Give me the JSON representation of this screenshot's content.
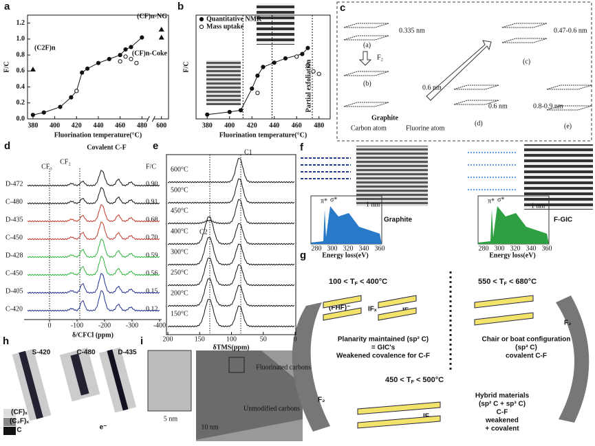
{
  "panel_labels": [
    "a",
    "b",
    "c",
    "d",
    "e",
    "f",
    "g",
    "h",
    "i"
  ],
  "chart_data": [
    {
      "type": "line",
      "ylabel": "F/C",
      "xlabel": "Fluorination temperature(°C)",
      "xlim": [
        375,
        605
      ],
      "x_break": [
        485,
        595
      ],
      "ylim": [
        0,
        1.3
      ],
      "xticks": [
        380,
        400,
        420,
        440,
        460,
        480,
        600
      ],
      "yticks": [
        {
          "value": 0,
          "label": "0.0"
        },
        0.2,
        0.4,
        0.6,
        {
          "value": 0.8,
          "label": "0.8"
        },
        {
          "value": 1,
          "label": "1.0"
        },
        1.2
      ],
      "series": [
        {
          "marker": "circle-filled",
          "line": true,
          "color": "#111",
          "x": [
            380,
            390,
            405,
            415,
            420,
            425,
            430,
            440,
            450,
            460,
            465,
            470,
            480
          ],
          "values": [
            0.05,
            0.08,
            0.15,
            0.27,
            0.35,
            0.58,
            0.63,
            0.7,
            0.75,
            0.8,
            0.87,
            0.9,
            1.02
          ]
        },
        {
          "marker": "circle-open",
          "line": false,
          "color": "#111",
          "x": [
            420,
            460,
            465,
            470,
            475
          ],
          "values": [
            0.35,
            0.72,
            0.78,
            0.75,
            0.7
          ]
        },
        {
          "marker": "triangle",
          "line": false,
          "color": "#111",
          "x": [
            380,
            600,
            600
          ],
          "values": [
            0.62,
            1.12,
            1.02
          ]
        }
      ],
      "annotations": [
        "(C2F)n",
        "(CF)n-NG",
        "(CF)n-Coke"
      ]
    },
    {
      "type": "line",
      "ylabel": "F/C",
      "xlabel": "Fluorination temperature(°C)",
      "xlim": [
        370,
        490
      ],
      "ylim": [
        0,
        1.2
      ],
      "xticks": [
        380,
        400,
        420,
        440,
        460,
        480
      ],
      "series": [
        {
          "name": "Quantitative NMR",
          "marker": "circle-filled",
          "line": true,
          "color": "#111",
          "x": [
            380,
            400,
            410,
            420,
            425,
            430,
            440,
            450,
            465,
            470
          ],
          "values": [
            0.05,
            0.08,
            0.1,
            0.35,
            0.5,
            0.6,
            0.65,
            0.7,
            0.75,
            0.82
          ]
        },
        {
          "name": "Mass uptake",
          "marker": "circle-open",
          "line": false,
          "color": "#111",
          "x": [
            425,
            460,
            470,
            475,
            480
          ],
          "values": [
            0.3,
            0.72,
            0.62,
            0.55,
            0.52
          ]
        }
      ],
      "reference_lines": [
        412,
        438,
        474
      ],
      "annotation": "Partial exfoliation",
      "legend": "upper-left"
    }
  ],
  "panel_c": {
    "labels": [
      "0.335 nm",
      "(a)",
      "F₂",
      "(b)",
      "0.6 nm",
      "Graphite",
      "Carbon atom",
      "Fluorine atom",
      "(c)",
      "0.47-0.6 nm",
      "(d)",
      "0.6 nm",
      "0.8-0.9 nm",
      "(e)"
    ]
  },
  "panel_d": {
    "title": "Covalent C-F",
    "cf3": "CF₃",
    "cf2": "CF₂",
    "fc_header": "F/C",
    "rows": [
      [
        "D-472",
        "0.90"
      ],
      [
        "C-480",
        "0.91"
      ],
      [
        "D-435",
        "0.68"
      ],
      [
        "C-450",
        "0.70"
      ],
      [
        "D-428",
        "0.59"
      ],
      [
        "C-450",
        "0.56"
      ],
      [
        "D-405",
        "0.15"
      ],
      [
        "C-420",
        "0.12"
      ]
    ],
    "xticks": [
      0,
      -100,
      -200,
      -300,
      -400
    ],
    "xlabel": "δ/CFCl (ppm)"
  },
  "panel_e": {
    "rows": [
      "600°C",
      "500°C",
      "450°C",
      "400°C",
      "300°C",
      "250°C",
      "200°C",
      "150°C"
    ],
    "c1": "C1",
    "c2": "C2",
    "xticks": [
      200,
      150,
      100,
      50,
      0
    ],
    "xlabel": "δTMS(ppm)"
  },
  "panel_f": {
    "pi": "π*",
    "sigma": "σ*",
    "scale": "1 nm",
    "graphite": "Graphite",
    "fgic": "F-GIC",
    "xlabel": "Energy loss(eV)",
    "xticks": [
      280,
      300,
      320,
      340,
      360
    ]
  },
  "panel_g": {
    "t1": "100 < T",
    "t1b": "F",
    "t1c": " < 400°C",
    "fhf": "(FHF)⁻",
    "ifx": "IFₓ",
    "l1": "Planarity maintained (sp² C)",
    "l2": "= GIC's",
    "l3": "Weakened covalence for C-F",
    "t2": "550 < T",
    "t2b": "F",
    "t2c": " < 680°C",
    "r1": "Chair or boat configuration",
    "r2": "(sp³ C)",
    "r3": "covalent  C-F",
    "t3": "450 < T",
    "t3b": "F",
    "t3c": " < 500°C",
    "h1": "Hybrid materials",
    "h2": "(sp² C + sp³ C)",
    "h3": "C-F",
    "h4": "weakened",
    "h5": "+ covalent",
    "f2": "F₂"
  },
  "panel_h": {
    "s1": "S-420",
    "s2": "C-480",
    "s3": "D-435",
    "k1": "(CF)ₓ",
    "k2": "(C₂F)ₓ",
    "k3": "C",
    "e": "e⁻"
  },
  "panel_i": {
    "s1": "5 nm",
    "s2": "10 nm",
    "l1": "Fluorinated carbons",
    "l2": "Unmodified carbons"
  }
}
